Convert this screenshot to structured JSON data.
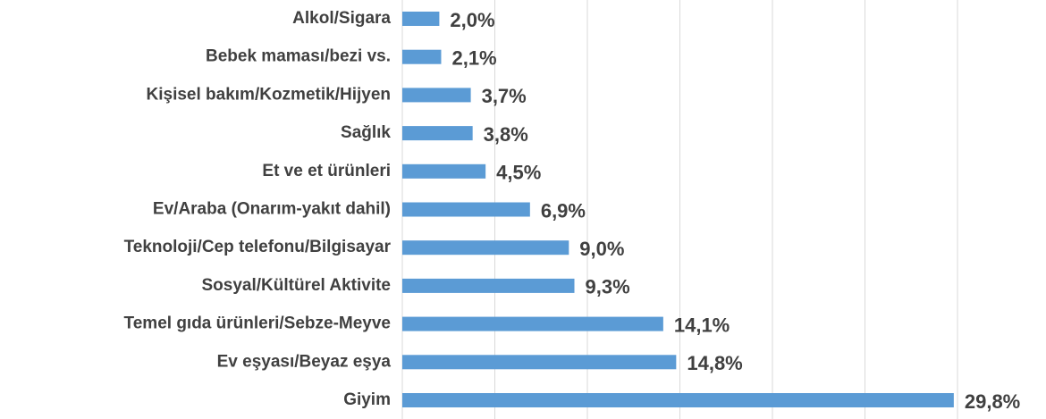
{
  "chart_data": {
    "type": "bar",
    "orientation": "horizontal",
    "categories": [
      "Alkol/Sigara",
      "Bebek maması/bezi vs.",
      "Kişisel bakım/Kozmetik/Hijyen",
      "Sağlık",
      "Et ve et ürünleri",
      "Ev/Araba (Onarım-yakıt dahil)",
      "Teknoloji/Cep telefonu/Bilgisayar",
      "Sosyal/Kültürel Aktivite",
      "Temel gıda ürünleri/Sebze-Meyve",
      "Ev eşyası/Beyaz eşya",
      "Giyim"
    ],
    "values": [
      2.0,
      2.1,
      3.7,
      3.8,
      4.5,
      6.9,
      9.0,
      9.3,
      14.1,
      14.8,
      29.8
    ],
    "value_labels": [
      "2,0%",
      "2,1%",
      "3,7%",
      "3,8%",
      "4,5%",
      "6,9%",
      "9,0%",
      "9,3%",
      "14,1%",
      "14,8%",
      "29,8%"
    ],
    "color": "#5b9bd5",
    "xlim": [
      0,
      30
    ],
    "xticks": [
      0,
      5,
      10,
      15,
      20,
      25,
      30
    ],
    "grid": true
  }
}
